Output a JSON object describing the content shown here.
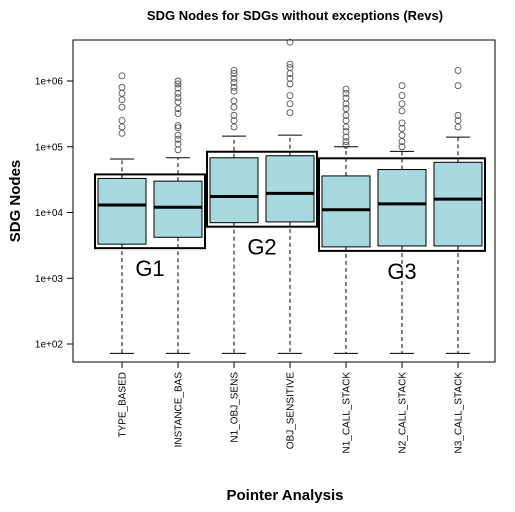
{
  "chart_data": {
    "type": "box",
    "title": "SDG Nodes for SDGs without exceptions (Revs)",
    "xlabel": "Pointer Analysis",
    "ylabel": "SDG Nodes",
    "yscale": "log",
    "ylim": [
      55,
      5000000
    ],
    "yticks": [
      {
        "value": 100,
        "label": "1e+02"
      },
      {
        "value": 1000,
        "label": "1e+03"
      },
      {
        "value": 10000,
        "label": "1e+04"
      },
      {
        "value": 100000,
        "label": "1e+05"
      },
      {
        "value": 1000000,
        "label": "1e+06"
      }
    ],
    "box_color": "#a8d8e0",
    "categories": [
      "TYPE_BASED",
      "INSTANCE_BAS",
      "N1_OBJ_SENS",
      "OBJ_SENSITIVE",
      "N1_CALL_STACK",
      "N2_CALL_STACK",
      "N3_CALL_STACK"
    ],
    "boxes": [
      {
        "whisker_low": 72,
        "q1": 3300,
        "median": 13000,
        "q3": 33000,
        "whisker_high": 65000,
        "outliers": [
          1200000,
          800000,
          650000,
          520000,
          400000,
          250000,
          200000,
          160000
        ]
      },
      {
        "whisker_low": 72,
        "q1": 4200,
        "median": 12000,
        "q3": 30000,
        "whisker_high": 68000,
        "outliers": [
          1000000,
          900000,
          780000,
          650000,
          560000,
          480000,
          380000,
          320000,
          210000,
          195000,
          150000,
          130000,
          110000,
          90000
        ]
      },
      {
        "whisker_low": 72,
        "q1": 7000,
        "median": 17500,
        "q3": 68000,
        "whisker_high": 145000,
        "outliers": [
          1450000,
          1300000,
          1100000,
          950000,
          800000,
          700000,
          500000,
          400000,
          300000,
          250000,
          200000
        ]
      },
      {
        "whisker_low": 72,
        "q1": 7200,
        "median": 19500,
        "q3": 73000,
        "whisker_high": 150000,
        "outliers": [
          3900000,
          1800000,
          1600000,
          1300000,
          1100000,
          900000,
          600000,
          450000,
          330000
        ]
      },
      {
        "whisker_low": 72,
        "q1": 3000,
        "median": 11000,
        "q3": 36000,
        "whisker_high": 100000,
        "outliers": [
          750000,
          650000,
          550000,
          450000,
          380000,
          300000,
          250000,
          200000,
          170000,
          140000,
          120000,
          105000
        ]
      },
      {
        "whisker_low": 72,
        "q1": 3100,
        "median": 13500,
        "q3": 45000,
        "whisker_high": 85000,
        "outliers": [
          850000,
          600000,
          450000,
          350000,
          230000,
          190000,
          150000,
          120000,
          100000
        ]
      },
      {
        "whisker_low": 72,
        "q1": 3100,
        "median": 16000,
        "q3": 58000,
        "whisker_high": 140000,
        "outliers": [
          1450000,
          850000,
          300000,
          250000,
          200000
        ]
      }
    ],
    "groups": [
      {
        "label": "G1",
        "from": 0,
        "to": 1
      },
      {
        "label": "G2",
        "from": 2,
        "to": 3
      },
      {
        "label": "G3",
        "from": 4,
        "to": 6
      }
    ]
  }
}
